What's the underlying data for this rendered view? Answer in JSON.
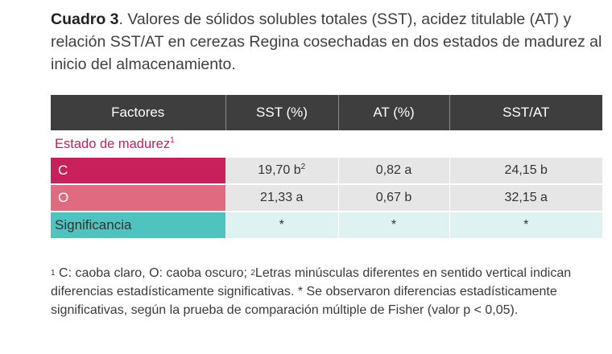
{
  "caption": {
    "label": "Cuadro 3",
    "text": ". Valores de sólidos solubles totales (SST), acidez titulable (AT) y relación SST/AT en cerezas Regina cosechadas en dos estados de madurez al inicio del almacenamiento."
  },
  "table": {
    "headers": [
      "Factores",
      "SST (%)",
      "AT (%)",
      "SST/AT"
    ],
    "group": {
      "label": "Estado de madurez",
      "note": "1"
    },
    "rows": [
      {
        "label": "C",
        "sst": "19,70 b",
        "sst_note": "2",
        "at": "0,82 a",
        "ratio": "24,15 b"
      },
      {
        "label": "O",
        "sst": "21,33 a",
        "at": "0,67 b",
        "ratio": "32,15 a"
      },
      {
        "label": "Significancia",
        "sst": "*",
        "at": "*",
        "ratio": "*"
      }
    ]
  },
  "footnote": {
    "mark1": "1",
    "part1": " C: caoba claro, O: caoba oscuro; ",
    "mark2": "2",
    "part2": "Letras minúsculas diferentes en sentido vertical indican diferencias estadísticamente significativas. * Se observaron diferencias estadísticamente significativas, según la prueba de comparación múltiple de Fisher (valor p < 0,05)."
  },
  "colors": {
    "header_bg": "#3e3e3e",
    "group_text": "#c81d5c",
    "row_c": "#c8205a",
    "row_o": "#e06a80",
    "row_sig": "#4ec3c0"
  }
}
